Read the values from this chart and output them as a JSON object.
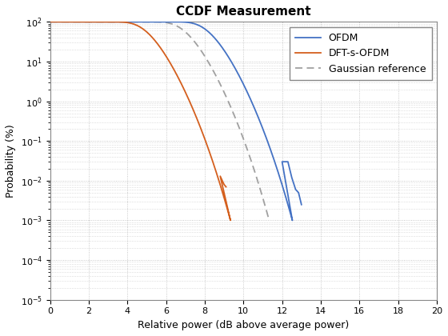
{
  "title": "CCDF Measurement",
  "xlabel": "Relative power (dB above average power)",
  "ylabel": "Probability (%)",
  "xlim": [
    0,
    20
  ],
  "ylim_log": [
    -5,
    2
  ],
  "ofdm_color": "#4472C4",
  "dft_color": "#D45F1E",
  "gauss_color": "#A0A0A0",
  "legend_labels": [
    "OFDM",
    "DFT-s-OFDM",
    "Gaussian reference"
  ],
  "grid_color": "#BBBBBB",
  "background_color": "#FFFFFF",
  "title_fontsize": 11,
  "axis_fontsize": 9,
  "legend_fontsize": 9
}
